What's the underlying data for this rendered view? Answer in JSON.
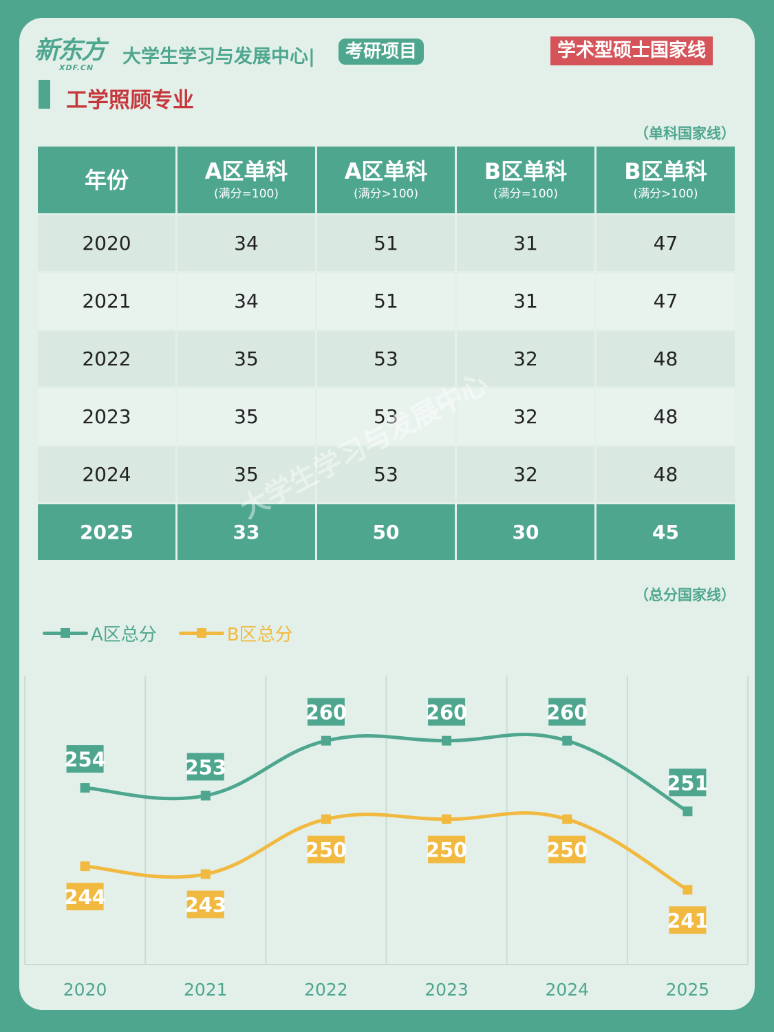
{
  "header": {
    "logo_cn": "新东方",
    "logo_en": "XDF.CN",
    "org": "大学生学习与发展中心|",
    "project_badge": "考研项目",
    "type_badge": "学术型硕士国家线"
  },
  "subject": "工学照顾专业",
  "table_note": "（单科国家线）",
  "table": {
    "headers": [
      {
        "main": "年份",
        "sub": ""
      },
      {
        "main": "A区单科",
        "sub": "(满分=100)"
      },
      {
        "main": "A区单科",
        "sub": "(满分>100)"
      },
      {
        "main": "B区单科",
        "sub": "(满分=100)"
      },
      {
        "main": "B区单科",
        "sub": "(满分>100)"
      }
    ],
    "rows": [
      [
        "2020",
        "34",
        "51",
        "31",
        "47"
      ],
      [
        "2021",
        "34",
        "51",
        "31",
        "47"
      ],
      [
        "2022",
        "35",
        "53",
        "32",
        "48"
      ],
      [
        "2023",
        "35",
        "53",
        "32",
        "48"
      ],
      [
        "2024",
        "35",
        "53",
        "32",
        "48"
      ],
      [
        "2025",
        "33",
        "50",
        "30",
        "45"
      ]
    ]
  },
  "chart_note": "（总分国家线）",
  "colors": {
    "green": "#4ea68f",
    "yellow": "#f1b93f",
    "red": "#d4545a"
  },
  "chart_data": {
    "type": "line",
    "x": [
      "2020",
      "2021",
      "2022",
      "2023",
      "2024",
      "2025"
    ],
    "series": [
      {
        "name": "A区总分",
        "color": "#4ea68f",
        "values": [
          254,
          253,
          260,
          260,
          260,
          251
        ]
      },
      {
        "name": "B区总分",
        "color": "#f1b93f",
        "values": [
          244,
          243,
          250,
          250,
          250,
          241
        ]
      }
    ],
    "ylim": [
      232,
      264
    ],
    "legend": "top-left",
    "grid": "vertical"
  }
}
